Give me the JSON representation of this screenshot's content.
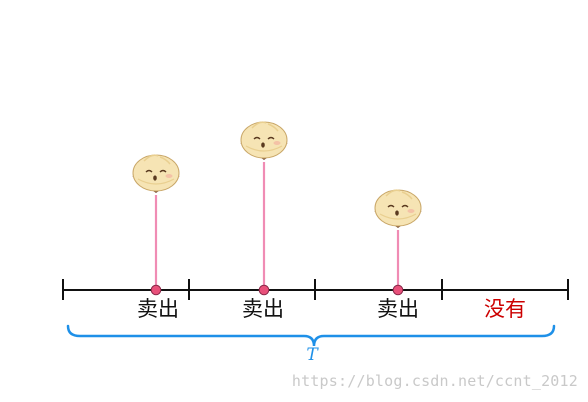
{
  "diagram": {
    "events": [
      {
        "segment": 1,
        "label": "卖出",
        "status": "sold",
        "height_rank": 2
      },
      {
        "segment": 2,
        "label": "卖出",
        "status": "sold",
        "height_rank": 3
      },
      {
        "segment": 3,
        "label": "卖出",
        "status": "sold",
        "height_rank": 1
      },
      {
        "segment": 4,
        "label": "没有",
        "status": "none",
        "height_rank": 0
      }
    ],
    "interval_label": "T",
    "colors": {
      "axis": "#111111",
      "stem": "#f08cb4",
      "dot": "#e8507a",
      "brace": "#1e90e8",
      "interval_label": "#1e90e8",
      "sold_text": "#111111",
      "none_text": "#cc0000",
      "bun_body": "#f6e4b4",
      "bun_shadow": "#e9cf90",
      "bun_base": "#7a5236"
    }
  },
  "watermark": "https://blog.csdn.net/ccnt_2012"
}
